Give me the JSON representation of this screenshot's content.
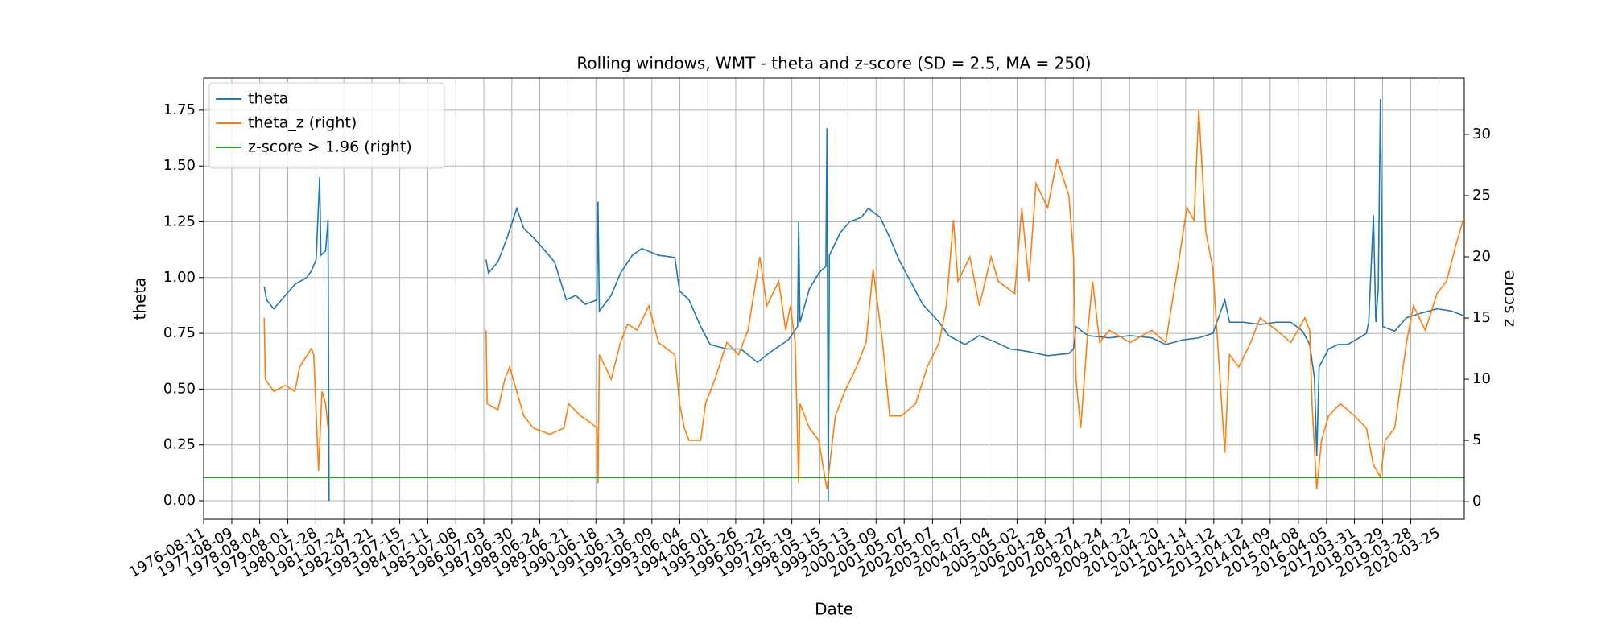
{
  "chart_data": {
    "type": "line",
    "title": "Rolling windows, WMT - theta and z-score (SD = 2.5, MA = 250)",
    "xlabel": "Date",
    "ylabel": "theta",
    "y2label": "z score",
    "xlim": [
      "1976-08-11",
      "2021-02-15"
    ],
    "xticks": [
      "1976-08-11",
      "1977-08-09",
      "1978-08-04",
      "1979-08-01",
      "1980-07-28",
      "1981-07-24",
      "1982-07-21",
      "1983-07-15",
      "1984-07-11",
      "1985-07-08",
      "1986-07-03",
      "1987-06-30",
      "1988-06-24",
      "1989-06-21",
      "1990-06-18",
      "1991-06-13",
      "1992-06-09",
      "1993-06-04",
      "1994-06-01",
      "1995-05-26",
      "1996-05-22",
      "1997-05-19",
      "1998-05-15",
      "1999-05-13",
      "2000-05-09",
      "2001-05-07",
      "2002-05-07",
      "2003-05-07",
      "2004-05-04",
      "2005-05-02",
      "2006-04-28",
      "2007-04-27",
      "2008-04-24",
      "2009-04-22",
      "2010-04-20",
      "2011-04-14",
      "2012-04-12",
      "2013-04-12",
      "2014-04-09",
      "2015-04-08",
      "2016-04-05",
      "2017-03-31",
      "2018-03-29",
      "2019-03-28",
      "2020-03-25"
    ],
    "ylim": [
      -0.083,
      1.894
    ],
    "yticks": [
      {
        "value": 0,
        "label": "0.00"
      },
      {
        "value": 0.25,
        "label": "0.25"
      },
      {
        "value": 0.5,
        "label": "0.50"
      },
      {
        "value": 0.75,
        "label": "0.75"
      },
      {
        "value": 1,
        "label": "1.00"
      },
      {
        "value": 1.25,
        "label": "1.25"
      },
      {
        "value": 1.5,
        "label": "1.50"
      },
      {
        "value": 1.75,
        "label": "1.75"
      }
    ],
    "y2lim": [
      -1.44,
      34.6
    ],
    "y2ticks": [
      0,
      5,
      10,
      15,
      20,
      25,
      30
    ],
    "grid": true,
    "legend": "upper left",
    "series": [
      {
        "name": "theta",
        "color": "#1f77b4",
        "x": [
          "1978-10-01",
          "1978-11-01",
          "1979-02-01",
          "1979-07-01",
          "1979-11-01",
          "1980-04-01",
          "1980-06-01",
          "1980-08-01",
          "1980-09-15",
          "1980-10-01",
          "1980-12-01",
          "1981-01-01",
          "1981-01-15",
          "1984-01-01",
          "1986-08-01",
          "1986-09-01",
          "1987-01-01",
          "1987-05-01",
          "1987-09-01",
          "1987-12-01",
          "1988-04-01",
          "1988-09-01",
          "1989-01-01",
          "1989-06-01",
          "1989-10-01",
          "1990-02-01",
          "1990-07-01",
          "1990-07-15",
          "1990-08-01",
          "1991-01-01",
          "1991-05-01",
          "1991-10-01",
          "1992-02-01",
          "1992-09-01",
          "1993-04-01",
          "1993-06-01",
          "1993-10-01",
          "1994-03-01",
          "1994-07-01",
          "1995-02-01",
          "1995-08-01",
          "1996-03-01",
          "1996-09-01",
          "1997-04-01",
          "1997-08-01",
          "1997-08-15",
          "1997-09-01",
          "1998-01-01",
          "1998-05-01",
          "1998-08-01",
          "1998-08-15",
          "1998-09-01",
          "1998-09-15",
          "1999-02-01",
          "1999-06-01",
          "1999-11-01",
          "2000-02-01",
          "2000-07-01",
          "2000-11-01",
          "2001-03-01",
          "2001-08-01",
          "2002-01-01",
          "2002-08-01",
          "2002-12-01",
          "2003-07-01",
          "2004-01-01",
          "2004-08-01",
          "2005-02-01",
          "2005-09-01",
          "2006-06-01",
          "2007-03-01",
          "2007-05-01",
          "2007-06-01",
          "2007-11-01",
          "2008-08-01",
          "2009-05-01",
          "2010-02-01",
          "2010-08-01",
          "2011-03-01",
          "2011-10-01",
          "2012-04-01",
          "2012-09-01",
          "2012-11-01",
          "2013-05-01",
          "2013-12-01",
          "2014-07-01",
          "2015-01-01",
          "2015-06-01",
          "2015-09-01",
          "2015-11-01",
          "2015-12-01",
          "2016-01-01",
          "2016-05-01",
          "2016-09-01",
          "2017-01-01",
          "2017-06-01",
          "2017-09-01",
          "2017-10-01",
          "2017-12-01",
          "2018-01-01",
          "2018-02-01",
          "2018-03-01",
          "2018-04-01",
          "2018-09-01",
          "2019-02-01",
          "2019-08-01",
          "2020-03-01",
          "2020-09-01",
          "2021-02-01"
        ],
        "values": [
          0.96,
          0.9,
          0.86,
          0.92,
          0.97,
          1.0,
          1.03,
          1.08,
          1.45,
          1.1,
          1.12,
          1.26,
          0.0,
          null,
          1.08,
          1.02,
          1.07,
          1.18,
          1.31,
          1.22,
          1.18,
          1.12,
          1.07,
          0.9,
          0.92,
          0.88,
          0.9,
          1.34,
          0.85,
          0.92,
          1.02,
          1.1,
          1.13,
          1.1,
          1.09,
          0.94,
          0.9,
          0.78,
          0.7,
          0.68,
          0.68,
          0.62,
          0.67,
          0.72,
          0.78,
          1.25,
          0.8,
          0.95,
          1.02,
          1.05,
          1.67,
          0.0,
          1.1,
          1.2,
          1.25,
          1.27,
          1.31,
          1.27,
          1.18,
          1.08,
          0.98,
          0.88,
          0.8,
          0.74,
          0.7,
          0.74,
          0.71,
          0.68,
          0.67,
          0.65,
          0.66,
          0.68,
          0.78,
          0.74,
          0.73,
          0.74,
          0.73,
          0.7,
          0.72,
          0.73,
          0.75,
          0.9,
          0.8,
          0.8,
          0.79,
          0.8,
          0.8,
          0.76,
          0.7,
          0.55,
          0.2,
          0.6,
          0.68,
          0.7,
          0.7,
          0.73,
          0.75,
          0.8,
          1.28,
          0.8,
          0.95,
          1.8,
          0.78,
          0.76,
          0.82,
          0.84,
          0.86,
          0.85,
          0.83
        ]
      },
      {
        "name": "theta_z (right)",
        "color": "#ff7f0e",
        "axis": "y2",
        "x": [
          "1978-10-01",
          "1978-10-15",
          "1979-02-01",
          "1979-07-01",
          "1979-11-01",
          "1980-01-01",
          "1980-06-01",
          "1980-07-01",
          "1980-09-01",
          "1980-10-15",
          "1980-12-01",
          "1981-01-01",
          "1984-01-01",
          "1986-08-01",
          "1986-08-15",
          "1987-01-01",
          "1987-04-01",
          "1987-06-01",
          "1987-09-01",
          "1987-12-01",
          "1988-04-01",
          "1988-11-01",
          "1989-05-01",
          "1989-07-01",
          "1989-12-01",
          "1990-04-01",
          "1990-07-01",
          "1990-07-15",
          "1990-08-01",
          "1991-01-01",
          "1991-05-01",
          "1991-08-01",
          "1991-12-01",
          "1992-05-01",
          "1992-09-01",
          "1993-04-01",
          "1993-06-01",
          "1993-08-01",
          "1993-10-01",
          "1994-03-01",
          "1994-05-01",
          "1994-09-01",
          "1995-02-01",
          "1995-07-01",
          "1995-11-01",
          "1996-04-01",
          "1996-07-01",
          "1996-12-01",
          "1997-03-01",
          "1997-05-01",
          "1997-07-01",
          "1997-08-15",
          "1997-09-01",
          "1998-01-01",
          "1998-05-01",
          "1998-08-15",
          "1998-12-01",
          "1999-04-01",
          "1999-09-01",
          "2000-01-01",
          "2000-04-01",
          "2000-08-01",
          "2000-11-01",
          "2001-04-01",
          "2001-10-01",
          "2002-03-01",
          "2002-08-01",
          "2002-11-01",
          "2003-02-01",
          "2003-04-01",
          "2003-09-01",
          "2004-01-01",
          "2004-06-01",
          "2004-09-01",
          "2005-04-01",
          "2005-07-01",
          "2005-10-01",
          "2006-01-01",
          "2006-06-01",
          "2006-10-01",
          "2007-03-01",
          "2007-05-01",
          "2007-06-01",
          "2007-08-01",
          "2007-11-01",
          "2008-01-01",
          "2008-04-01",
          "2008-08-01",
          "2009-05-01",
          "2010-02-01",
          "2010-08-01",
          "2011-01-01",
          "2011-05-01",
          "2011-08-01",
          "2011-10-01",
          "2012-01-01",
          "2012-04-01",
          "2012-06-01",
          "2012-09-01",
          "2012-11-01",
          "2013-03-01",
          "2013-08-01",
          "2013-12-01",
          "2014-07-01",
          "2015-01-01",
          "2015-07-01",
          "2015-09-01",
          "2015-10-01",
          "2015-12-01",
          "2016-02-01",
          "2016-05-01",
          "2016-10-01",
          "2017-04-01",
          "2017-09-01",
          "2017-12-01",
          "2018-03-01",
          "2018-05-01",
          "2018-09-01",
          "2019-02-01",
          "2019-05-01",
          "2019-10-01",
          "2020-03-01",
          "2020-07-01",
          "2020-11-01",
          "2021-02-01"
        ],
        "values": [
          15,
          10,
          9,
          9.5,
          9,
          11,
          12.5,
          12,
          2.5,
          9,
          8,
          6,
          null,
          14,
          8,
          7.5,
          10,
          11,
          9,
          7,
          6,
          5.5,
          6,
          8,
          7,
          6.5,
          6,
          1.5,
          12,
          10,
          13,
          14.5,
          14,
          16,
          13,
          12,
          8,
          6,
          5,
          5,
          8,
          10,
          13,
          12,
          14,
          20,
          16,
          18,
          14,
          16,
          13,
          1.5,
          8,
          6,
          5,
          1,
          7,
          9,
          11,
          13,
          19,
          13,
          7,
          7,
          8,
          11,
          13,
          16,
          23,
          18,
          20,
          16,
          20,
          18,
          17,
          24,
          18,
          26,
          24,
          28,
          25,
          20,
          10,
          6,
          14,
          18,
          13,
          14,
          13,
          14,
          13,
          19,
          24,
          23,
          32,
          22,
          19,
          13,
          4,
          12,
          11,
          13,
          15,
          14,
          13,
          15,
          14,
          8,
          1,
          5,
          7,
          8,
          7,
          6,
          3,
          2,
          5,
          6,
          13,
          16,
          14,
          17,
          18,
          21,
          23
        ]
      },
      {
        "name": "z-score > 1.96 (right)",
        "color": "#2ca02c",
        "axis": "y2",
        "x": [
          "1976-08-11",
          "2021-02-15"
        ],
        "values": [
          1.96,
          1.96
        ]
      }
    ]
  }
}
